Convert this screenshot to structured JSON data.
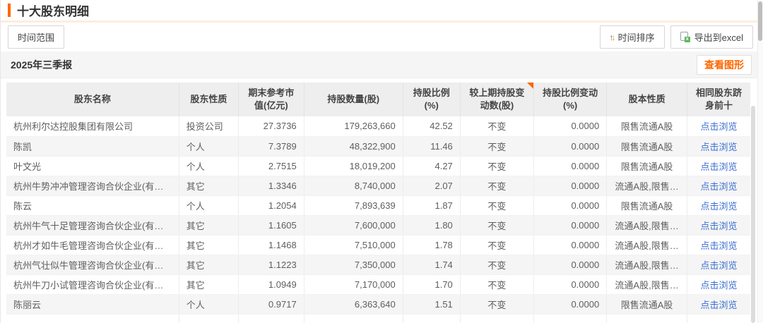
{
  "header": {
    "title": "十大股东明细"
  },
  "toolbar": {
    "time_range": "时间范围",
    "time_sort": "时间排序",
    "sort_up_glyph": "↑",
    "sort_down_glyph": "↓",
    "export_excel": "导出到excel",
    "excel_badge_glyph": "x"
  },
  "section": {
    "period": "2025年三季报",
    "view_chart": "查看图形"
  },
  "table": {
    "columns": [
      {
        "label": "股东名称",
        "marker": false
      },
      {
        "label": "股东性质",
        "marker": false
      },
      {
        "label": "期末参考市值(亿元)",
        "marker": false
      },
      {
        "label": "持股数量(股)",
        "marker": false
      },
      {
        "label": "持股比例(%)",
        "marker": false
      },
      {
        "label": "较上期持股变动数(股)",
        "marker": true
      },
      {
        "label": "持股比例变动(%)",
        "marker": false
      },
      {
        "label": "股本性质",
        "marker": false
      },
      {
        "label": "相同股东跻身前十",
        "marker": false
      }
    ],
    "rows": [
      {
        "name": "杭州利尔达控股集团有限公司",
        "nature": "投资公司",
        "market_value": "27.3736",
        "shares": "179,263,660",
        "ratio": "42.52",
        "change": "不变",
        "ratio_change": "0.0000",
        "share_type": "限售流通A股",
        "link": "点击浏览"
      },
      {
        "name": "陈凯",
        "nature": "个人",
        "market_value": "7.3789",
        "shares": "48,322,900",
        "ratio": "11.46",
        "change": "不变",
        "ratio_change": "0.0000",
        "share_type": "限售流通A股",
        "link": "点击浏览"
      },
      {
        "name": "叶文光",
        "nature": "个人",
        "market_value": "2.7515",
        "shares": "18,019,200",
        "ratio": "4.27",
        "change": "不变",
        "ratio_change": "0.0000",
        "share_type": "限售流通A股",
        "link": "点击浏览"
      },
      {
        "name": "杭州牛势冲冲管理咨询合伙企业(有限合…",
        "nature": "其它",
        "market_value": "1.3346",
        "shares": "8,740,000",
        "ratio": "2.07",
        "change": "不变",
        "ratio_change": "0.0000",
        "share_type": "流通A股,限售…",
        "link": "点击浏览"
      },
      {
        "name": "陈云",
        "nature": "个人",
        "market_value": "1.2054",
        "shares": "7,893,639",
        "ratio": "1.87",
        "change": "不变",
        "ratio_change": "0.0000",
        "share_type": "限售流通A股",
        "link": "点击浏览"
      },
      {
        "name": "杭州牛气十足管理咨询合伙企业(有限合…",
        "nature": "其它",
        "market_value": "1.1605",
        "shares": "7,600,000",
        "ratio": "1.80",
        "change": "不变",
        "ratio_change": "0.0000",
        "share_type": "流通A股,限售…",
        "link": "点击浏览"
      },
      {
        "name": "杭州才如牛毛管理咨询合伙企业(有限合…",
        "nature": "其它",
        "market_value": "1.1468",
        "shares": "7,510,000",
        "ratio": "1.78",
        "change": "不变",
        "ratio_change": "0.0000",
        "share_type": "流通A股,限售…",
        "link": "点击浏览"
      },
      {
        "name": "杭州气壮似牛管理咨询合伙企业(有限合…",
        "nature": "其它",
        "market_value": "1.1223",
        "shares": "7,350,000",
        "ratio": "1.74",
        "change": "不变",
        "ratio_change": "0.0000",
        "share_type": "流通A股,限售…",
        "link": "点击浏览"
      },
      {
        "name": "杭州牛刀小试管理咨询合伙企业(有限合…",
        "nature": "其它",
        "market_value": "1.0949",
        "shares": "7,170,000",
        "ratio": "1.70",
        "change": "不变",
        "ratio_change": "0.0000",
        "share_type": "流通A股,限售…",
        "link": "点击浏览"
      },
      {
        "name": "陈丽云",
        "nature": "个人",
        "market_value": "0.9717",
        "shares": "6,363,640",
        "ratio": "1.51",
        "change": "不变",
        "ratio_change": "0.0000",
        "share_type": "限售流通A股",
        "link": "点击浏览"
      }
    ]
  },
  "colors": {
    "accent_orange": "#ff6600",
    "link_blue": "#3b6ed0",
    "header_bg": "#eeeeee",
    "stripe_bg": "#f5f5f5",
    "sort_arrow_orange": "#ff8a00",
    "excel_green": "#5cb85c"
  }
}
